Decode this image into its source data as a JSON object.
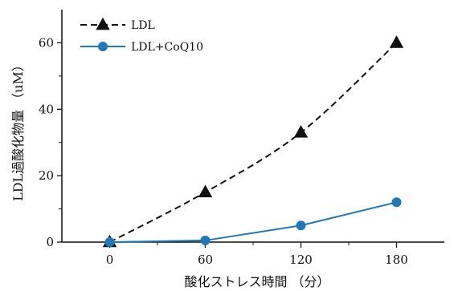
{
  "chart_data": {
    "type": "line",
    "x": [
      0,
      60,
      120,
      180
    ],
    "xlabel": "酸化ストレス時間 （分）",
    "ylabel": "LDL過酸化物量 （uM）",
    "xlim": [
      -30,
      210
    ],
    "ylim": [
      0,
      70
    ],
    "xticks": [
      0,
      60,
      120,
      180
    ],
    "yticks": [
      0,
      20,
      40,
      60
    ],
    "grid": false,
    "legend_position": "top-left",
    "series": [
      {
        "name": "LDL",
        "values": [
          0,
          15,
          33,
          60
        ],
        "marker": "triangle",
        "line_style": "dashed",
        "color": "#111111"
      },
      {
        "name": "LDL+CoQ10",
        "values": [
          0,
          0.5,
          5,
          12
        ],
        "marker": "circle",
        "line_style": "solid",
        "color": "#1f78b8"
      }
    ]
  }
}
